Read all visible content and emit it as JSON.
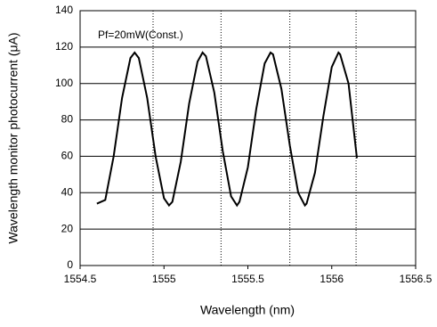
{
  "chart_data": {
    "type": "line",
    "x_label": "Wavelength (nm)",
    "y_label": "Wavelength monitor photocurrent (μA)",
    "annotation": "Pf=20mW(Const.)",
    "xlim": [
      1554.5,
      1556.5
    ],
    "xticks": [
      1554.5,
      1555,
      1555.5,
      1556,
      1556.5
    ],
    "ylim": [
      0,
      140
    ],
    "yticks": [
      0,
      20,
      40,
      60,
      80,
      100,
      120,
      140
    ],
    "grid": true,
    "vlines": [
      1554.935,
      1555.34,
      1555.75,
      1556.145
    ],
    "series": [
      {
        "color": "#000000",
        "x": [
          1554.6,
          1554.65,
          1554.7,
          1554.75,
          1554.8,
          1554.825,
          1554.85,
          1554.9,
          1554.95,
          1555.0,
          1555.03,
          1555.05,
          1555.1,
          1555.15,
          1555.2,
          1555.23,
          1555.25,
          1555.3,
          1555.35,
          1555.4,
          1555.435,
          1555.45,
          1555.5,
          1555.55,
          1555.6,
          1555.635,
          1555.65,
          1555.7,
          1555.75,
          1555.8,
          1555.84,
          1555.85,
          1555.9,
          1555.95,
          1556.0,
          1556.04,
          1556.05,
          1556.1,
          1556.15
        ],
        "values": [
          34,
          36,
          60,
          92,
          114,
          117,
          114,
          92,
          60,
          37,
          33,
          35,
          57,
          89,
          112,
          117,
          115,
          95,
          63,
          38,
          33,
          35,
          54,
          86,
          111,
          117,
          116,
          97,
          66,
          40,
          33,
          34,
          51,
          82,
          109,
          117,
          116,
          100,
          59
        ]
      }
    ]
  }
}
